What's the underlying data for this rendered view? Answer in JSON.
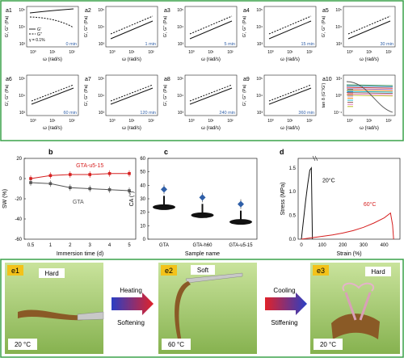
{
  "a": {
    "common": {
      "y_label": "G', G'' (Pa)",
      "x_label": "ω (rad/s)",
      "y_ticks": [
        "10⁵",
        "10⁴",
        "10³"
      ],
      "x_ticks": [
        "10⁰",
        "10¹",
        "10²"
      ]
    },
    "panels": [
      {
        "id": "a1",
        "time": "0 min",
        "legend": [
          "G'",
          "G''"
        ],
        "strain": "γ = 0.1%"
      },
      {
        "id": "a2",
        "time": "1 min"
      },
      {
        "id": "a3",
        "time": "5 min"
      },
      {
        "id": "a4",
        "time": "15 min"
      },
      {
        "id": "a5",
        "time": "30 min"
      },
      {
        "id": "a6",
        "time": "60 min"
      },
      {
        "id": "a7",
        "time": "120 min"
      },
      {
        "id": "a8",
        "time": "240 min"
      },
      {
        "id": "a9",
        "time": "360 min"
      },
      {
        "id": "a10",
        "y_label": "tan δ (G''/G')",
        "y_ticks": [
          "10¹",
          "10⁰",
          "10⁻¹"
        ],
        "x_label": "ω (rad/s)",
        "x_ticks": [
          "10⁰",
          "10¹",
          "10²"
        ]
      }
    ]
  },
  "chart_data": [
    {
      "id": "b",
      "type": "line",
      "xlabel": "Immersion time (d)",
      "ylabel": "SW (%)",
      "x": [
        0.5,
        1,
        2,
        3,
        4,
        5
      ],
      "ylim": [
        -60,
        20
      ],
      "yticks": [
        20,
        0,
        -20,
        -40,
        -60
      ],
      "series": [
        {
          "name": "GTA-u5-15",
          "color": "#d62020",
          "values": [
            0,
            3,
            4,
            4,
            5,
            5
          ]
        },
        {
          "name": "GTA",
          "color": "#555555",
          "values": [
            -4,
            -5,
            -9,
            -10,
            -11,
            -12
          ]
        }
      ]
    },
    {
      "id": "c",
      "type": "scatter",
      "xlabel": "Sample name",
      "ylabel": "CA (°)",
      "categories": [
        "GTA",
        "GTA-h60",
        "GTA-u5-15"
      ],
      "values": [
        37,
        31,
        26
      ],
      "ylim": [
        0,
        60
      ],
      "yticks": [
        60,
        50,
        40,
        30,
        20,
        10,
        0
      ],
      "marker_color": "#2f5fa8"
    },
    {
      "id": "d",
      "type": "line",
      "xlabel": "Strain (%)",
      "ylabel": "Stress (MPa)",
      "xticks": [
        0,
        100,
        200,
        300,
        400
      ],
      "yticks": [
        0.0,
        0.5,
        1.0,
        1.5
      ],
      "ylim": [
        0,
        1.7
      ],
      "series": [
        {
          "name": "20°C",
          "color": "#111111",
          "x": [
            0,
            2,
            4,
            6,
            8,
            9.5,
            10.5
          ],
          "y": [
            0,
            0.4,
            0.8,
            1.15,
            1.45,
            1.5,
            0
          ]
        },
        {
          "name": "60°C",
          "color": "#d62020",
          "x": [
            0,
            50,
            100,
            150,
            200,
            250,
            300,
            350,
            400,
            430,
            440,
            445
          ],
          "y": [
            0,
            0.03,
            0.06,
            0.09,
            0.13,
            0.18,
            0.25,
            0.34,
            0.45,
            0.55,
            0.3,
            0
          ]
        }
      ]
    }
  ],
  "e": {
    "e1": {
      "label": "e1",
      "state": "Hard",
      "temp": "20 °C"
    },
    "arrow1": {
      "top": "Heating",
      "bottom": "Softening"
    },
    "e2": {
      "label": "e2",
      "state": "Soft",
      "temp": "60 °C"
    },
    "arrow2": {
      "top": "Cooling",
      "bottom": "Stiffening"
    },
    "e3": {
      "label": "e3",
      "state": "Hard",
      "temp": "20 °C"
    }
  },
  "panel_labels": {
    "b": "b",
    "c": "c",
    "d": "d"
  }
}
